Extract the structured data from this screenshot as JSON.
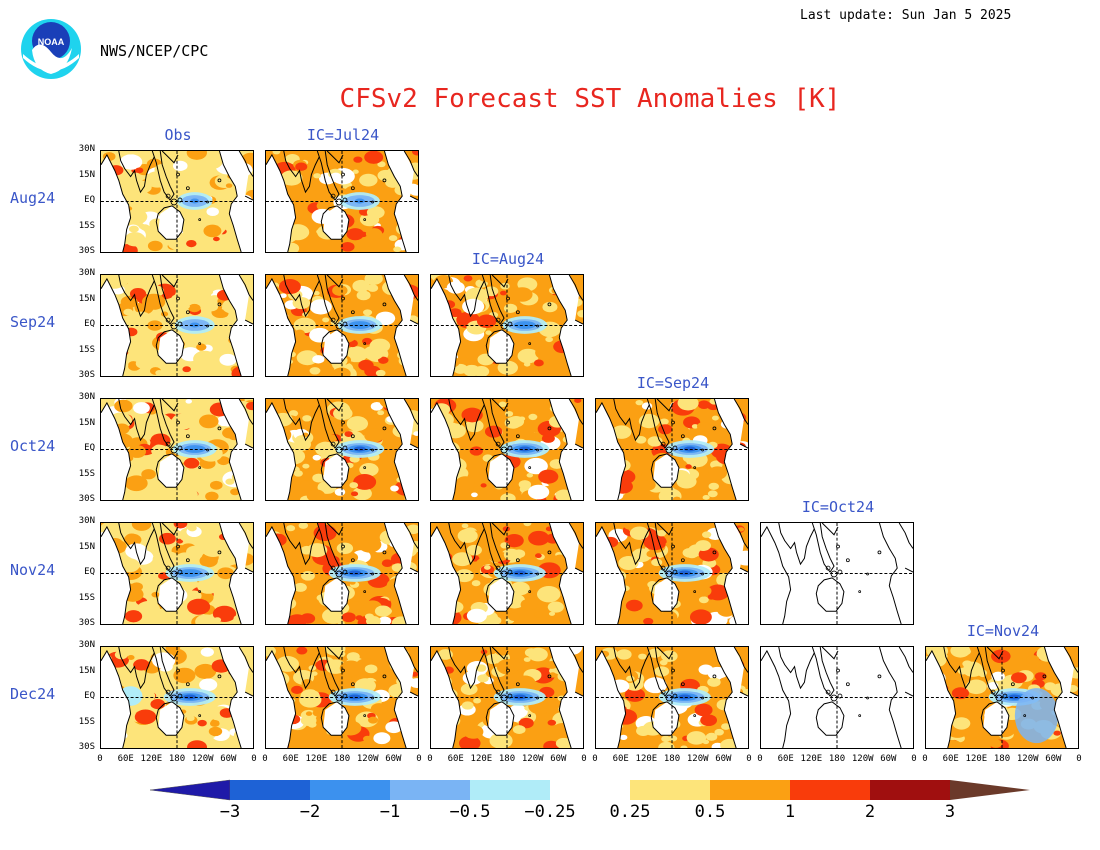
{
  "header": {
    "last_update": "Last update: Sun Jan 5 2025",
    "agency": "NWS/NCEP/CPC",
    "title": "CFSv2 Forecast SST Anomalies [K]",
    "logo_text": "NOAA"
  },
  "chart_data": {
    "type": "heatmap",
    "title": "CFSv2 Forecast SST Anomalies [K]",
    "columns": [
      "Obs",
      "IC=Jul24",
      "IC=Aug24",
      "IC=Sep24",
      "IC=Oct24",
      "IC=Nov24"
    ],
    "rows": [
      "Aug24",
      "Sep24",
      "Oct24",
      "Nov24",
      "Dec24"
    ],
    "lat_ticks": [
      "30N",
      "15N",
      "EQ",
      "15S",
      "30S"
    ],
    "lon_ticks": [
      "0",
      "60E",
      "120E",
      "180",
      "120W",
      "60W",
      "0"
    ],
    "colorbar": {
      "levels": [
        "−3",
        "−2",
        "−1",
        "−0.5",
        "−0.25",
        "0.25",
        "0.5",
        "1",
        "2",
        "3"
      ],
      "colors": [
        "#1f1aa8",
        "#1e62d6",
        "#3c91ee",
        "#7ab4f4",
        "#b0ecf8",
        "#ffffff",
        "#fde47a",
        "#fba013",
        "#f93c0b",
        "#a00f0f",
        "#6b3a2a"
      ]
    },
    "panels": [
      {
        "row": 0,
        "col": 0,
        "empty": false
      },
      {
        "row": 0,
        "col": 1,
        "empty": false
      },
      {
        "row": 1,
        "col": 0,
        "empty": false
      },
      {
        "row": 1,
        "col": 1,
        "empty": false
      },
      {
        "row": 1,
        "col": 2,
        "empty": false
      },
      {
        "row": 2,
        "col": 0,
        "empty": false
      },
      {
        "row": 2,
        "col": 1,
        "empty": false
      },
      {
        "row": 2,
        "col": 2,
        "empty": false
      },
      {
        "row": 2,
        "col": 3,
        "empty": false
      },
      {
        "row": 3,
        "col": 0,
        "empty": false
      },
      {
        "row": 3,
        "col": 1,
        "empty": false
      },
      {
        "row": 3,
        "col": 2,
        "empty": false
      },
      {
        "row": 3,
        "col": 3,
        "empty": false
      },
      {
        "row": 3,
        "col": 4,
        "empty": true
      },
      {
        "row": 4,
        "col": 0,
        "empty": false
      },
      {
        "row": 4,
        "col": 1,
        "empty": false
      },
      {
        "row": 4,
        "col": 2,
        "empty": false
      },
      {
        "row": 4,
        "col": 3,
        "empty": false
      },
      {
        "row": 4,
        "col": 4,
        "empty": true
      },
      {
        "row": 4,
        "col": 5,
        "empty": false
      }
    ]
  }
}
